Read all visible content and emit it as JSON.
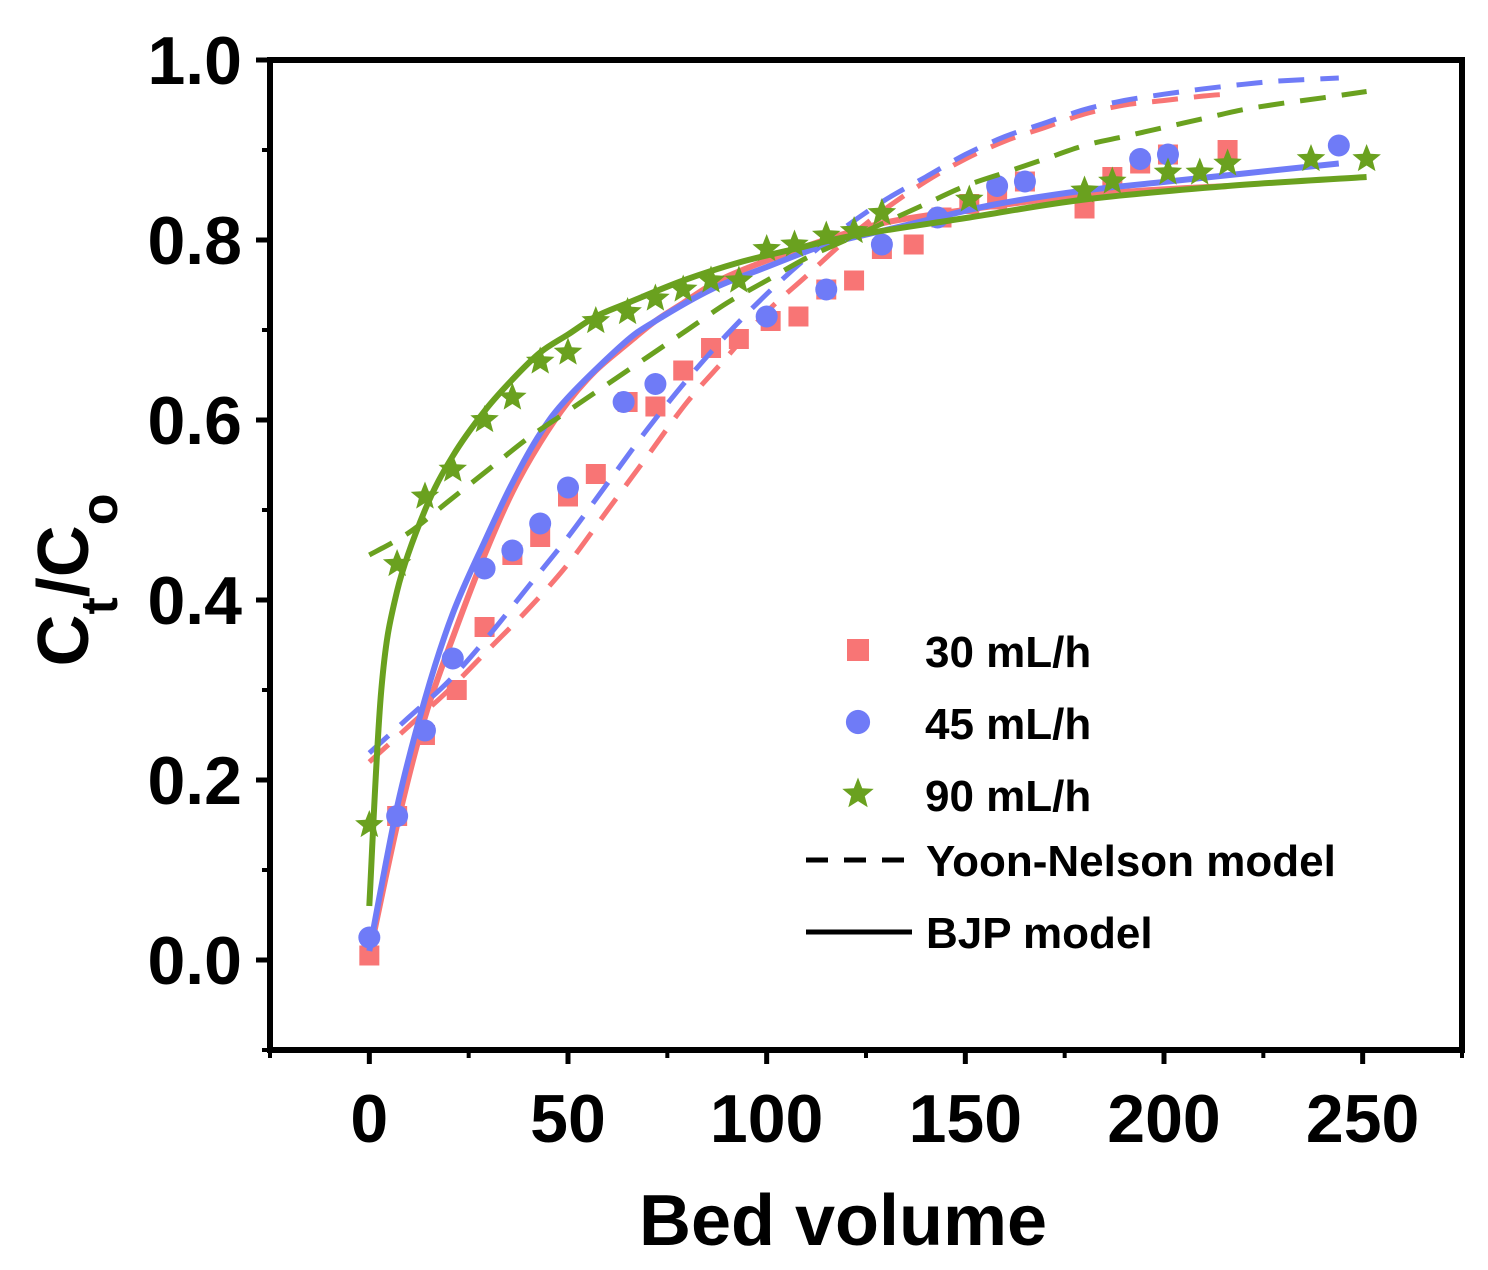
{
  "chart_data": {
    "type": "scatter",
    "title": "",
    "xlabel": "Bed volume",
    "ylabel": {
      "main": "C",
      "sub1": "t",
      "sep": "/C",
      "sub2": "o"
    },
    "xlim": [
      -25,
      275
    ],
    "ylim": [
      -0.1,
      1.0
    ],
    "xticks": [
      0,
      50,
      100,
      150,
      200,
      250
    ],
    "xtick_labels": [
      "0",
      "50",
      "100",
      "150",
      "200",
      "250"
    ],
    "yticks": [
      0.0,
      0.2,
      0.4,
      0.6,
      0.8,
      1.0
    ],
    "ytick_labels": [
      "0.0",
      "0.2",
      "0.4",
      "0.6",
      "0.8",
      "1.0"
    ],
    "grid": false,
    "legend_position": "lower-right",
    "colors": {
      "s30": "#f87575",
      "s45": "#6f7bf7",
      "s90": "#6aa11f",
      "axis": "#000000"
    },
    "series": [
      {
        "name": "30 mL/h",
        "key": "s30",
        "marker": "square",
        "x": [
          0,
          7,
          14,
          22,
          29,
          36,
          43,
          50,
          57,
          65,
          72,
          79,
          86,
          93,
          101,
          108,
          115,
          122,
          129,
          137,
          144,
          151,
          158,
          165,
          180,
          187,
          194,
          201,
          216
        ],
        "y": [
          0.005,
          0.16,
          0.25,
          0.3,
          0.37,
          0.45,
          0.47,
          0.515,
          0.54,
          0.62,
          0.615,
          0.655,
          0.68,
          0.69,
          0.71,
          0.715,
          0.745,
          0.755,
          0.79,
          0.795,
          0.825,
          0.84,
          0.845,
          0.865,
          0.835,
          0.87,
          0.885,
          0.895,
          0.9
        ],
        "bjp_y": [
          0.005,
          0.15,
          0.27,
          0.37,
          0.45,
          0.52,
          0.575,
          0.62,
          0.655,
          0.685,
          0.71,
          0.73,
          0.75,
          0.765,
          0.79,
          0.81,
          0.825,
          0.85,
          0.86
        ],
        "bjp_x": [
          0,
          7,
          14,
          22,
          29,
          36,
          43,
          50,
          57,
          65,
          72,
          79,
          86,
          93,
          108,
          122,
          137,
          180,
          216
        ],
        "yn_x": [
          0,
          10,
          20,
          30,
          40,
          50,
          60,
          70,
          80,
          90,
          100,
          110,
          120,
          130,
          140,
          150,
          160,
          170,
          180,
          190,
          200,
          210,
          216
        ],
        "yn_y": [
          0.22,
          0.26,
          0.3,
          0.345,
          0.39,
          0.44,
          0.5,
          0.56,
          0.62,
          0.67,
          0.72,
          0.76,
          0.8,
          0.835,
          0.865,
          0.89,
          0.91,
          0.925,
          0.94,
          0.95,
          0.955,
          0.96,
          0.962
        ]
      },
      {
        "name": "45 mL/h",
        "key": "s45",
        "marker": "circle",
        "x": [
          0,
          7,
          14,
          21,
          29,
          36,
          43,
          50,
          64,
          72,
          100,
          115,
          129,
          143,
          158,
          165,
          194,
          201,
          244
        ],
        "y": [
          0.025,
          0.16,
          0.255,
          0.335,
          0.435,
          0.455,
          0.485,
          0.525,
          0.62,
          0.64,
          0.715,
          0.745,
          0.795,
          0.825,
          0.86,
          0.865,
          0.89,
          0.895,
          0.905
        ],
        "bjp_x": [
          0,
          7,
          14,
          21,
          29,
          36,
          43,
          50,
          64,
          72,
          86,
          100,
          115,
          129,
          143,
          158,
          180,
          201,
          244
        ],
        "bjp_y": [
          0.01,
          0.17,
          0.29,
          0.385,
          0.465,
          0.53,
          0.585,
          0.625,
          0.685,
          0.71,
          0.745,
          0.77,
          0.795,
          0.81,
          0.825,
          0.84,
          0.855,
          0.865,
          0.885
        ],
        "yn_x": [
          0,
          10,
          20,
          30,
          40,
          50,
          60,
          70,
          80,
          90,
          100,
          110,
          120,
          130,
          140,
          150,
          160,
          170,
          180,
          190,
          200,
          210,
          220,
          230,
          244
        ],
        "yn_y": [
          0.23,
          0.27,
          0.31,
          0.36,
          0.415,
          0.47,
          0.53,
          0.59,
          0.645,
          0.695,
          0.74,
          0.78,
          0.815,
          0.845,
          0.87,
          0.895,
          0.915,
          0.93,
          0.945,
          0.955,
          0.962,
          0.968,
          0.973,
          0.977,
          0.98
        ]
      },
      {
        "name": "90 mL/h",
        "key": "s90",
        "marker": "star",
        "x": [
          0,
          7,
          14,
          21,
          29,
          36,
          43,
          50,
          57,
          65,
          72,
          79,
          86,
          93,
          100,
          107,
          115,
          122,
          129,
          151,
          180,
          187,
          201,
          209,
          216,
          237,
          251
        ],
        "y": [
          0.15,
          0.44,
          0.515,
          0.545,
          0.6,
          0.625,
          0.665,
          0.675,
          0.71,
          0.72,
          0.735,
          0.745,
          0.755,
          0.755,
          0.79,
          0.795,
          0.805,
          0.81,
          0.83,
          0.845,
          0.855,
          0.865,
          0.875,
          0.875,
          0.885,
          0.89,
          0.89
        ],
        "bjp_x": [
          0,
          3,
          7,
          14,
          21,
          29,
          36,
          43,
          50,
          57,
          65,
          79,
          93,
          107,
          122,
          151,
          180,
          216,
          251
        ],
        "bjp_y": [
          0.06,
          0.3,
          0.41,
          0.5,
          0.56,
          0.61,
          0.645,
          0.675,
          0.695,
          0.715,
          0.73,
          0.755,
          0.775,
          0.79,
          0.805,
          0.825,
          0.845,
          0.86,
          0.87
        ],
        "yn_x": [
          0,
          10,
          20,
          30,
          40,
          50,
          60,
          70,
          80,
          90,
          100,
          110,
          120,
          130,
          140,
          150,
          160,
          170,
          180,
          190,
          200,
          210,
          220,
          230,
          240,
          251
        ],
        "yn_y": [
          0.45,
          0.475,
          0.51,
          0.545,
          0.58,
          0.61,
          0.64,
          0.67,
          0.7,
          0.73,
          0.755,
          0.78,
          0.8,
          0.82,
          0.84,
          0.86,
          0.875,
          0.89,
          0.905,
          0.915,
          0.925,
          0.935,
          0.945,
          0.952,
          0.958,
          0.965
        ]
      }
    ],
    "legend": {
      "items": [
        {
          "label": "30 mL/h",
          "key": "s30",
          "marker": "square"
        },
        {
          "label": "45 mL/h",
          "key": "s45",
          "marker": "circle"
        },
        {
          "label": "90 mL/h",
          "key": "s90",
          "marker": "star"
        },
        {
          "label": "Yoon-Nelson model",
          "line": "dashed"
        },
        {
          "label": "BJP model",
          "line": "solid"
        }
      ]
    }
  }
}
